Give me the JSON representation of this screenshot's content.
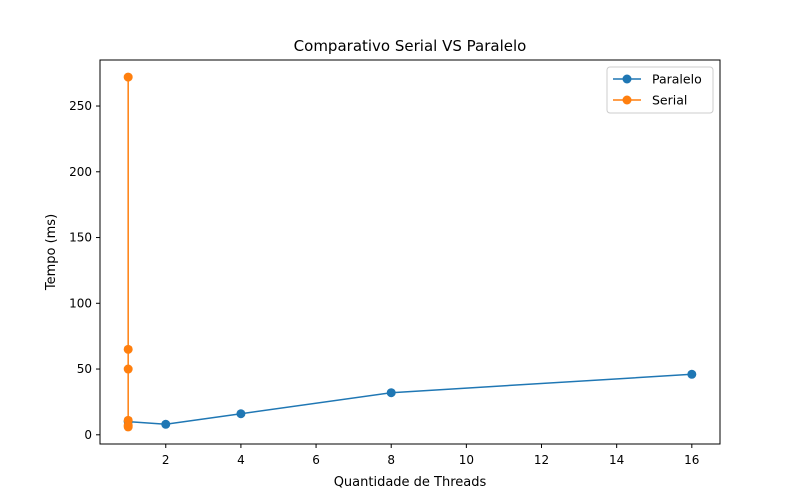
{
  "chart_data": {
    "type": "line",
    "title": "Comparativo Serial VS Paralelo",
    "xlabel": "Quantidade de Threads",
    "ylabel": "Tempo (ms)",
    "xlim": [
      0.25,
      16.75
    ],
    "ylim": [
      -7,
      285
    ],
    "xticks": [
      2,
      4,
      6,
      8,
      10,
      12,
      14,
      16
    ],
    "yticks": [
      0,
      50,
      100,
      150,
      200,
      250
    ],
    "grid": false,
    "legend_position": "top-right",
    "series": [
      {
        "name": "Paralelo",
        "color": "#1f77b4",
        "marker": "circle",
        "x": [
          1,
          2,
          4,
          8,
          16
        ],
        "y": [
          10,
          8,
          16,
          32,
          46
        ]
      },
      {
        "name": "Serial",
        "color": "#ff7f0e",
        "marker": "circle",
        "x": [
          1,
          1,
          1,
          1,
          1,
          1
        ],
        "y": [
          272,
          65,
          50,
          11,
          7,
          6
        ]
      }
    ]
  }
}
